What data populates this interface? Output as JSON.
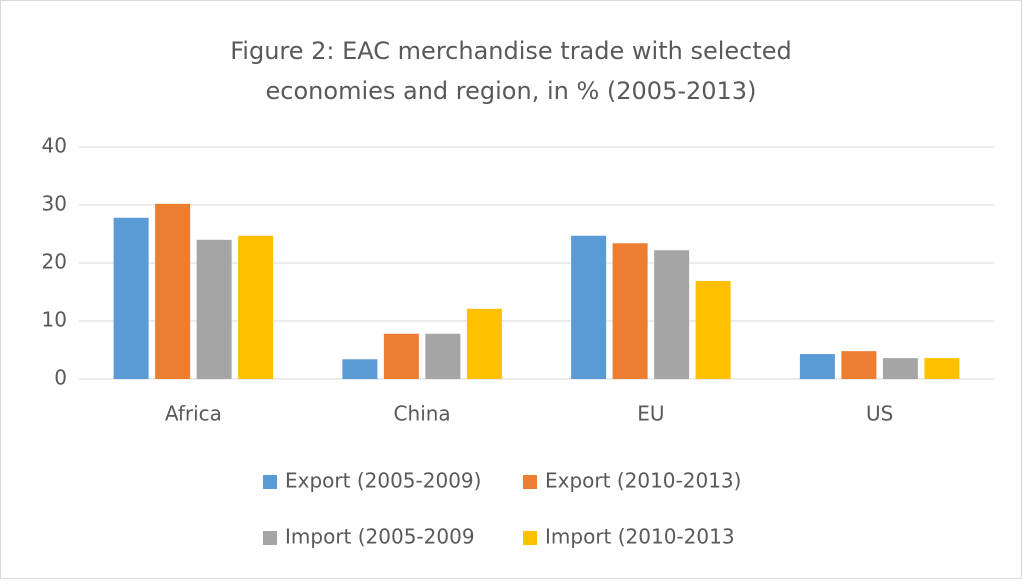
{
  "chart_data": {
    "type": "bar",
    "title": "Figure 2: EAC merchandise trade with selected economies and region, in % (2005-2013)",
    "categories": [
      "Africa",
      "China",
      "EU",
      "US"
    ],
    "series": [
      {
        "name": "Export (2005-2009)",
        "color": "#5b9bd5",
        "values": [
          27.8,
          3.4,
          24.7,
          4.3
        ]
      },
      {
        "name": "Export (2010-2013)",
        "color": "#ed7d31",
        "values": [
          30.2,
          7.8,
          23.4,
          4.8
        ]
      },
      {
        "name": "Import (2005-2009",
        "color": "#a5a5a5",
        "values": [
          24,
          7.8,
          22.2,
          3.6
        ]
      },
      {
        "name": "Import (2010-2013",
        "color": "#ffc000",
        "values": [
          24.7,
          12.1,
          16.9,
          3.6
        ]
      }
    ],
    "ylim": [
      0,
      40
    ],
    "yticks": [
      0,
      10,
      20,
      30,
      40
    ],
    "grid": true,
    "legend": "bottom"
  }
}
